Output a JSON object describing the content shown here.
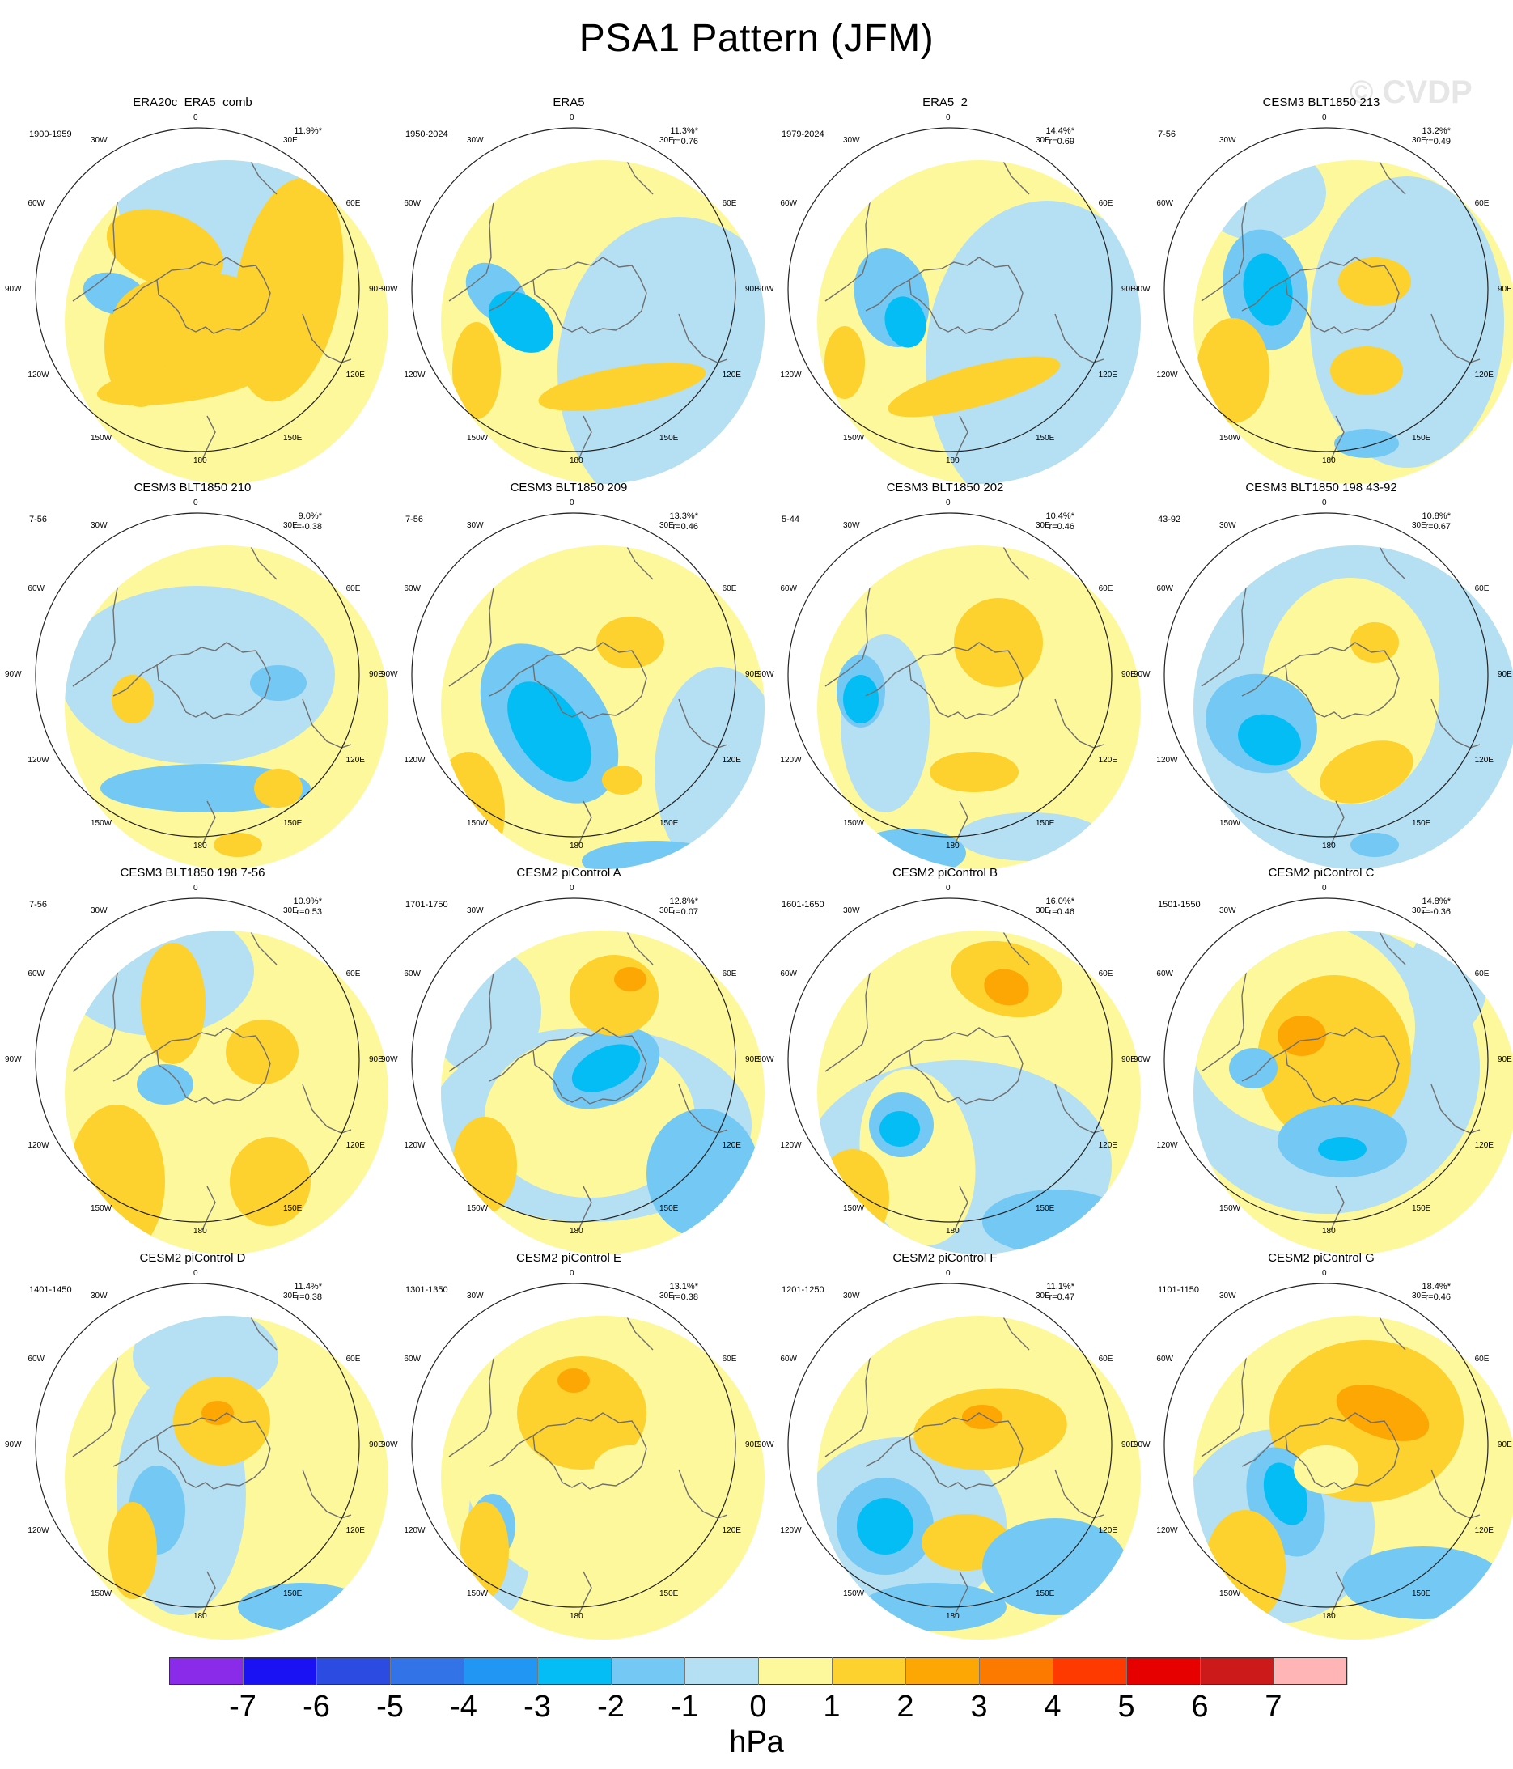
{
  "title": "PSA1 Pattern (JFM)",
  "watermark": "© CVDP",
  "lon_labels": [
    "0",
    "30E",
    "60E",
    "90E",
    "120E",
    "150E",
    "180",
    "150W",
    "120W",
    "90W",
    "60W",
    "30W"
  ],
  "panels": [
    {
      "title": "ERA20c_ERA5_comb",
      "period": "1900-1959",
      "pct": "11.9%*",
      "r": ""
    },
    {
      "title": "ERA5",
      "period": "1950-2024",
      "pct": "11.3%*",
      "r": "r=0.76"
    },
    {
      "title": "ERA5_2",
      "period": "1979-2024",
      "pct": "14.4%*",
      "r": "r=0.69"
    },
    {
      "title": "CESM3 BLT1850 213",
      "period": "7-56",
      "pct": "13.2%*",
      "r": "r=0.49"
    },
    {
      "title": "CESM3 BLT1850 210",
      "period": "7-56",
      "pct": "9.0%*",
      "r": "r=-0.38"
    },
    {
      "title": "CESM3 BLT1850 209",
      "period": "7-56",
      "pct": "13.3%*",
      "r": "r=0.46"
    },
    {
      "title": "CESM3 BLT1850 202",
      "period": "5-44",
      "pct": "10.4%*",
      "r": "r=0.46"
    },
    {
      "title": "CESM3 BLT1850 198 43-92",
      "period": "43-92",
      "pct": "10.8%*",
      "r": "r=0.67"
    },
    {
      "title": "CESM3 BLT1850 198 7-56",
      "period": "7-56",
      "pct": "10.9%*",
      "r": "r=0.53"
    },
    {
      "title": "CESM2 piControl A",
      "period": "1701-1750",
      "pct": "12.8%*",
      "r": "r=0.07"
    },
    {
      "title": "CESM2 piControl B",
      "period": "1601-1650",
      "pct": "16.0%*",
      "r": "r=0.46"
    },
    {
      "title": "CESM2 piControl C",
      "period": "1501-1550",
      "pct": "14.8%*",
      "r": "r=-0.36"
    },
    {
      "title": "CESM2 piControl D",
      "period": "1401-1450",
      "pct": "11.4%*",
      "r": "r=0.38"
    },
    {
      "title": "CESM2 piControl E",
      "period": "1301-1350",
      "pct": "13.1%*",
      "r": "r=0.38"
    },
    {
      "title": "CESM2 piControl F",
      "period": "1201-1250",
      "pct": "11.1%*",
      "r": "r=0.47"
    },
    {
      "title": "CESM2 piControl G",
      "period": "1101-1150",
      "pct": "18.4%*",
      "r": "r=0.46"
    }
  ],
  "colorbar": {
    "colors": [
      "#8b2bea",
      "#1a12f2",
      "#2c4be0",
      "#3274e8",
      "#2196f3",
      "#05bdf5",
      "#74c8f4",
      "#b5dff2",
      "#fdf89b",
      "#fdd12e",
      "#fda705",
      "#fd7a00",
      "#ff3a00",
      "#e60000",
      "#cc1a1a",
      "#ffb5b5"
    ],
    "ticks": [
      "-7",
      "-6",
      "-5",
      "-4",
      "-3",
      "-2",
      "-1",
      "0",
      "1",
      "2",
      "3",
      "4",
      "5",
      "6",
      "7"
    ],
    "unit": "hPa"
  }
}
